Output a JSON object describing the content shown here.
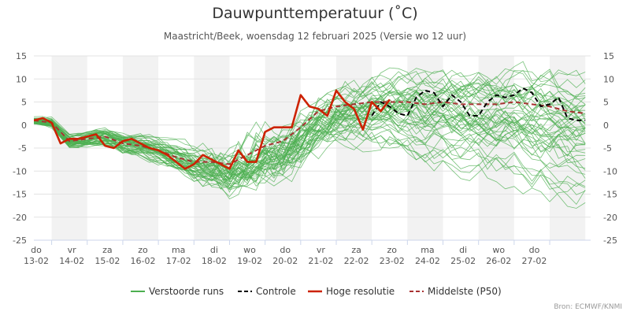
{
  "title": "Dauwpunttemperatuur (˚C)",
  "subtitle": "Maastricht/Beek, woensdag 12 februari 2025 (Versie wo 12 uur)",
  "credit": "Bron: ECMWF/KNMI",
  "chart_data": {
    "type": "line",
    "title": "Dauwpunttemperatuur (˚C)",
    "ylim": [
      -25,
      15
    ],
    "yticks": [
      -25,
      -20,
      -15,
      -10,
      -5,
      0,
      5,
      10,
      15
    ],
    "xlim": [
      0,
      15.65
    ],
    "day_labels": [
      {
        "day": "do",
        "date": "13-02"
      },
      {
        "day": "vr",
        "date": "14-02"
      },
      {
        "day": "za",
        "date": "15-02"
      },
      {
        "day": "zo",
        "date": "16-02"
      },
      {
        "day": "ma",
        "date": "17-02"
      },
      {
        "day": "di",
        "date": "18-02"
      },
      {
        "day": "wo",
        "date": "19-02"
      },
      {
        "day": "do",
        "date": "20-02"
      },
      {
        "day": "vr",
        "date": "21-02"
      },
      {
        "day": "za",
        "date": "22-02"
      },
      {
        "day": "zo",
        "date": "23-02"
      },
      {
        "day": "ma",
        "date": "24-02"
      },
      {
        "day": "di",
        "date": "25-02"
      },
      {
        "day": "wo",
        "date": "26-02"
      },
      {
        "day": "do",
        "date": "27-02"
      }
    ],
    "grid": true,
    "legend_position": "bottom-center",
    "ensemble_count": 50,
    "series": [
      {
        "name": "Hoge resolutie",
        "color": "#cc2200",
        "style": "solid",
        "x": [
          0,
          0.25,
          0.5,
          0.75,
          1,
          1.25,
          1.5,
          1.75,
          2,
          2.25,
          2.5,
          2.75,
          3,
          3.25,
          3.5,
          3.75,
          4,
          4.25,
          4.5,
          4.75,
          5,
          5.25,
          5.5,
          5.75,
          6,
          6.25,
          6.5,
          6.75,
          7,
          7.25,
          7.5,
          7.75,
          8,
          8.25,
          8.5,
          8.75,
          9,
          9.25,
          9.5,
          9.75,
          10
        ],
        "y": [
          1,
          1.5,
          0.5,
          -4,
          -3,
          -3,
          -2.5,
          -2,
          -4.5,
          -5,
          -3.5,
          -3,
          -4,
          -5,
          -5.5,
          -6.5,
          -8,
          -9.5,
          -8.5,
          -6.5,
          -7.5,
          -8.5,
          -9.5,
          -5.5,
          -8,
          -8,
          -1.5,
          -0.5,
          -0.5,
          -0.5,
          6.5,
          4,
          3.5,
          2,
          7.5,
          5,
          3.5,
          -1,
          5,
          3,
          5.5
        ]
      },
      {
        "name": "Controle",
        "color": "#000000",
        "style": "dashed",
        "x": [
          9.5,
          9.75,
          10,
          10.25,
          10.5,
          10.75,
          11,
          11.25,
          11.5,
          11.75,
          12,
          12.25,
          12.5,
          12.75,
          13,
          13.25,
          13.5,
          13.75,
          14,
          14.25,
          14.5,
          14.75,
          15,
          15.25,
          15.5
        ],
        "y": [
          2,
          5,
          4,
          2.5,
          2,
          6,
          7.5,
          7,
          4,
          6.5,
          5,
          2,
          2,
          5,
          6.5,
          6,
          6.5,
          8,
          7,
          4,
          4.5,
          6,
          1.5,
          1,
          1
        ]
      },
      {
        "name": "Middelste (P50)",
        "color": "#a83232",
        "style": "dashed",
        "x": [
          0,
          0.5,
          1,
          1.5,
          2,
          2.5,
          3,
          3.5,
          4,
          4.5,
          5,
          5.5,
          6,
          6.5,
          7,
          7.5,
          8,
          8.5,
          9,
          9.5,
          10,
          10.5,
          11,
          11.5,
          12,
          12.5,
          13,
          13.5,
          14,
          14.5,
          15,
          15.5
        ],
        "y": [
          1,
          0.5,
          -3.5,
          -3,
          -2.5,
          -4,
          -4.5,
          -5.5,
          -7,
          -8,
          -8,
          -8.5,
          -6.5,
          -4.5,
          -3.5,
          -0.5,
          3,
          4,
          4.5,
          5,
          5,
          5,
          4.5,
          5,
          4.5,
          4.5,
          4.5,
          5,
          4.5,
          4,
          3,
          2.5
        ]
      }
    ],
    "legend": [
      {
        "label": "Verstoorde runs",
        "color": "#4caf50",
        "style": "solid"
      },
      {
        "label": "Controle",
        "color": "#000000",
        "style": "dashed"
      },
      {
        "label": "Hoge resolutie",
        "color": "#cc2200",
        "style": "solid"
      },
      {
        "label": "Middelste (P50)",
        "color": "#a83232",
        "style": "dashed"
      }
    ]
  }
}
